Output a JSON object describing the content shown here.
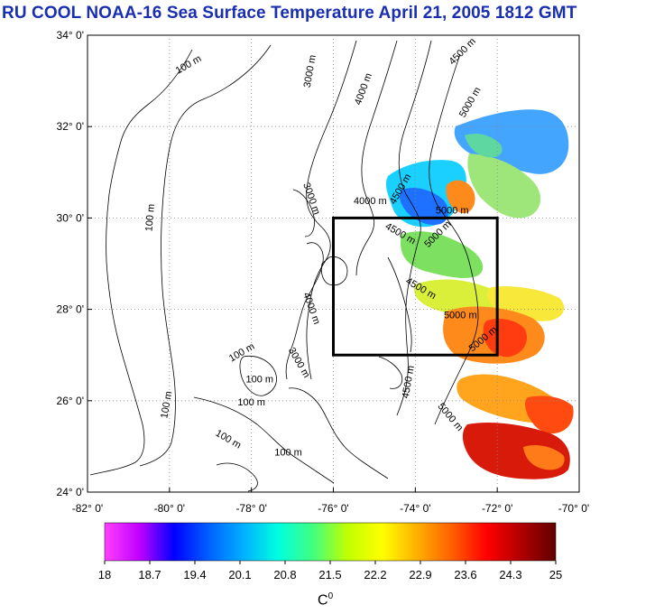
{
  "title": "RU COOL  NOAA-16 Sea Surface Temperature April 21, 2005 1812 GMT",
  "map": {
    "lat_labels": [
      "34° 0'",
      "32° 0'",
      "30° 0'",
      "28° 0'",
      "26° 0'",
      "24° 0'"
    ],
    "lon_labels": [
      "-82° 0'",
      "-80° 0'",
      "-78° 0'",
      "-76° 0'",
      "-74° 0'",
      "-72° 0'",
      "-70° 0'"
    ],
    "lat_values": [
      34,
      32,
      30,
      28,
      26,
      24
    ],
    "lon_values": [
      -82,
      -80,
      -78,
      -76,
      -74,
      -72,
      -70
    ],
    "study_box": {
      "lon_min": -76,
      "lon_max": -72,
      "lat_min": 27,
      "lat_max": 30
    },
    "contour_labels": [
      {
        "text": "100 m",
        "lon": -79.5,
        "lat": 33.3,
        "angle": -30
      },
      {
        "text": "3000 m",
        "lon": -76.5,
        "lat": 33.2,
        "angle": -80
      },
      {
        "text": "4000 m",
        "lon": -75.2,
        "lat": 32.8,
        "angle": -70
      },
      {
        "text": "4500 m",
        "lon": -72.8,
        "lat": 33.6,
        "angle": -45
      },
      {
        "text": "5000 m",
        "lon": -72.6,
        "lat": 32.5,
        "angle": -60
      },
      {
        "text": "100 m",
        "lon": -80.4,
        "lat": 30.0,
        "angle": -85
      },
      {
        "text": "3000 m",
        "lon": -76.6,
        "lat": 30.4,
        "angle": 70
      },
      {
        "text": "4000 m",
        "lon": -75.1,
        "lat": 30.3,
        "angle": 0
      },
      {
        "text": "4500 m",
        "lon": -74.3,
        "lat": 30.6,
        "angle": -60
      },
      {
        "text": "4500 m",
        "lon": -74.4,
        "lat": 29.6,
        "angle": 30
      },
      {
        "text": "5000 m",
        "lon": -73.1,
        "lat": 30.1,
        "angle": 0
      },
      {
        "text": "5000 m",
        "lon": -73.4,
        "lat": 29.6,
        "angle": -45
      },
      {
        "text": "4500 m",
        "lon": -73.9,
        "lat": 28.4,
        "angle": 30
      },
      {
        "text": "5000 m",
        "lon": -72.9,
        "lat": 27.8,
        "angle": 0
      },
      {
        "text": "5000 m",
        "lon": -72.3,
        "lat": 27.3,
        "angle": -40
      },
      {
        "text": "100 m",
        "lon": -78.2,
        "lat": 27.0,
        "angle": -30
      },
      {
        "text": "100 m",
        "lon": -77.8,
        "lat": 26.4,
        "angle": 0
      },
      {
        "text": "100 m",
        "lon": -78.0,
        "lat": 25.9,
        "angle": 0
      },
      {
        "text": "100 m",
        "lon": -80.0,
        "lat": 25.9,
        "angle": -80
      },
      {
        "text": "100 m",
        "lon": -78.6,
        "lat": 25.1,
        "angle": 30
      },
      {
        "text": "100 m",
        "lon": -77.1,
        "lat": 24.8,
        "angle": 0
      },
      {
        "text": "3000 m",
        "lon": -76.9,
        "lat": 26.8,
        "angle": 60
      },
      {
        "text": "4000 m",
        "lon": -76.6,
        "lat": 28.0,
        "angle": 70
      },
      {
        "text": "4500 m",
        "lon": -74.1,
        "lat": 26.4,
        "angle": -80
      },
      {
        "text": "5000 m",
        "lon": -73.2,
        "lat": 25.6,
        "angle": 50
      }
    ]
  },
  "colorbar": {
    "tick_labels": [
      "18",
      "18.7",
      "19.4",
      "20.1",
      "20.8",
      "21.5",
      "22.2",
      "22.9",
      "23.6",
      "24.3",
      "25"
    ],
    "min": 18,
    "max": 25,
    "unit": "C",
    "unit_superscript": "0",
    "colors": [
      "#ff40ff",
      "#c000ff",
      "#0000ff",
      "#0060ff",
      "#00b0ff",
      "#00ffe0",
      "#40ff80",
      "#c0ff00",
      "#ffff00",
      "#ffb000",
      "#ff6000",
      "#ff0000",
      "#b00000",
      "#600000"
    ]
  }
}
